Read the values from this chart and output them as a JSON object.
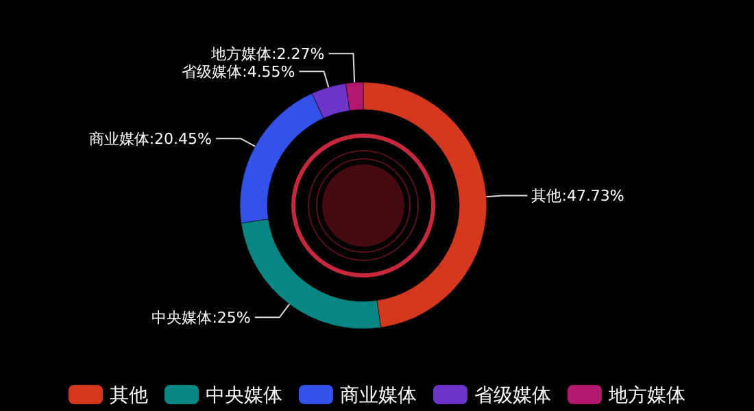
{
  "chart_data": {
    "type": "donut",
    "categories": [
      "其他",
      "中央媒体",
      "商业媒体",
      "省级媒体",
      "地方媒体"
    ],
    "values": [
      47.73,
      25,
      20.45,
      4.55,
      2.27
    ],
    "colors": [
      "#d5381e",
      "#088785",
      "#3352ea",
      "#6c34c9",
      "#b3186f"
    ],
    "value_labels": [
      "其他:47.73%",
      "中央媒体:25%",
      "商业媒体:20.45%",
      "省级媒体:4.55%",
      "地方媒体:2.27%"
    ],
    "legend": "bottom"
  }
}
